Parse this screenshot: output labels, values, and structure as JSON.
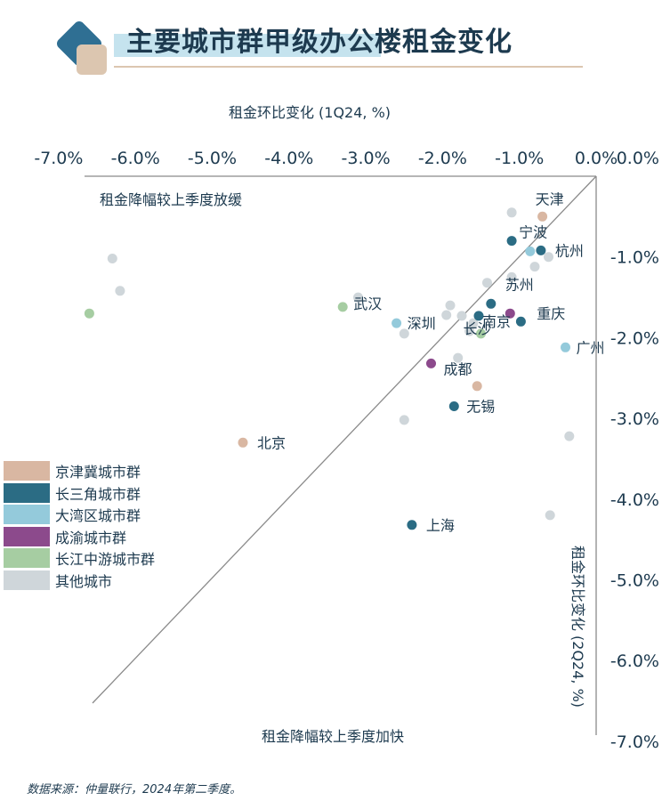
{
  "header": {
    "title": "主要城市群甲级办公楼租金变化"
  },
  "source": "数据来源：仲量联行，2024年第二季度。",
  "colors": {
    "京津冀城市群": "#d9b7a2",
    "长三角城市群": "#2b6c84",
    "大湾区城市群": "#94cadb",
    "成渝城市群": "#8c4a8c",
    "长江中游城市群": "#a6cda2",
    "其他城市": "#cfd6da",
    "axis": "#8a8a8a"
  },
  "chart_data": {
    "type": "scatter",
    "xlabel": "租金环比变化 (1Q24, %)",
    "ylabel": "租金环比变化 (2Q24, %)",
    "xlim": [
      -7.0,
      0.0
    ],
    "ylim": [
      -7.0,
      0.0
    ],
    "x_ticks": [
      "-7.0%",
      "-6.0%",
      "-5.0%",
      "-4.0%",
      "-3.0%",
      "-2.0%",
      "-1.0%",
      "0.0%"
    ],
    "y_ticks": [
      "0.0%",
      "-1.0%",
      "-2.0%",
      "-3.0%",
      "-4.0%",
      "-5.0%",
      "-6.0%",
      "-7.0%"
    ],
    "annotations": {
      "upper": "租金降幅较上季度放缓",
      "lower": "租金降幅较上季度加快"
    },
    "legend": [
      "京津冀城市群",
      "长三角城市群",
      "大湾区城市群",
      "成渝城市群",
      "长江中游城市群",
      "其他城市"
    ],
    "legend_position": "left",
    "points": [
      {
        "city": "天津",
        "group": "京津冀城市群",
        "x": -0.7,
        "y": -0.5
      },
      {
        "city": "北京",
        "group": "京津冀城市群",
        "x": -4.6,
        "y": -3.3
      },
      {
        "city": "",
        "group": "京津冀城市群",
        "x": -1.55,
        "y": -2.6
      },
      {
        "city": "宁波",
        "group": "长三角城市群",
        "x": -1.1,
        "y": -0.8
      },
      {
        "city": "杭州",
        "group": "长三角城市群",
        "x": -0.72,
        "y": -0.92
      },
      {
        "city": "苏州",
        "group": "长三角城市群",
        "x": -1.37,
        "y": -1.58
      },
      {
        "city": "南京",
        "group": "长三角城市群",
        "x": -1.53,
        "y": -1.73
      },
      {
        "city": "",
        "group": "长三角城市群",
        "x": -0.98,
        "y": -1.8
      },
      {
        "city": "无锡",
        "group": "长三角城市群",
        "x": -1.85,
        "y": -2.85
      },
      {
        "city": "上海",
        "group": "长三角城市群",
        "x": -2.4,
        "y": -4.32
      },
      {
        "city": "",
        "group": "大湾区城市群",
        "x": -0.86,
        "y": -0.93
      },
      {
        "city": "深圳",
        "group": "大湾区城市群",
        "x": -2.6,
        "y": -1.82
      },
      {
        "city": "广州",
        "group": "大湾区城市群",
        "x": -0.4,
        "y": -2.12
      },
      {
        "city": "重庆",
        "group": "成渝城市群",
        "x": -1.12,
        "y": -1.7
      },
      {
        "city": "成都",
        "group": "成渝城市群",
        "x": -2.15,
        "y": -2.32
      },
      {
        "city": "武汉",
        "group": "长江中游城市群",
        "x": -3.3,
        "y": -1.62
      },
      {
        "city": "长沙",
        "group": "长江中游城市群",
        "x": -1.5,
        "y": -1.95
      },
      {
        "city": "",
        "group": "长江中游城市群",
        "x": -6.6,
        "y": -1.7
      },
      {
        "city": "",
        "group": "其他城市",
        "x": -1.1,
        "y": -0.45
      },
      {
        "city": "",
        "group": "其他城市",
        "x": -0.62,
        "y": -1.0
      },
      {
        "city": "",
        "group": "其他城市",
        "x": -0.8,
        "y": -1.12
      },
      {
        "city": "",
        "group": "其他城市",
        "x": -1.1,
        "y": -1.25
      },
      {
        "city": "",
        "group": "其他城市",
        "x": -1.42,
        "y": -1.32
      },
      {
        "city": "",
        "group": "其他城市",
        "x": -6.3,
        "y": -1.02
      },
      {
        "city": "",
        "group": "其他城市",
        "x": -6.2,
        "y": -1.42
      },
      {
        "city": "",
        "group": "其他城市",
        "x": -3.1,
        "y": -1.5
      },
      {
        "city": "",
        "group": "其他城市",
        "x": -1.9,
        "y": -1.6
      },
      {
        "city": "",
        "group": "其他城市",
        "x": -1.95,
        "y": -1.72
      },
      {
        "city": "",
        "group": "其他城市",
        "x": -1.75,
        "y": -1.73
      },
      {
        "city": "",
        "group": "其他城市",
        "x": -1.6,
        "y": -1.82
      },
      {
        "city": "",
        "group": "其他城市",
        "x": -1.65,
        "y": -1.92
      },
      {
        "city": "",
        "group": "其他城市",
        "x": -2.5,
        "y": -1.95
      },
      {
        "city": "",
        "group": "其他城市",
        "x": -1.8,
        "y": -2.25
      },
      {
        "city": "",
        "group": "其他城市",
        "x": -2.5,
        "y": -3.02
      },
      {
        "city": "",
        "group": "其他城市",
        "x": -0.35,
        "y": -3.22
      },
      {
        "city": "",
        "group": "其他城市",
        "x": -0.6,
        "y": -4.2
      }
    ]
  }
}
